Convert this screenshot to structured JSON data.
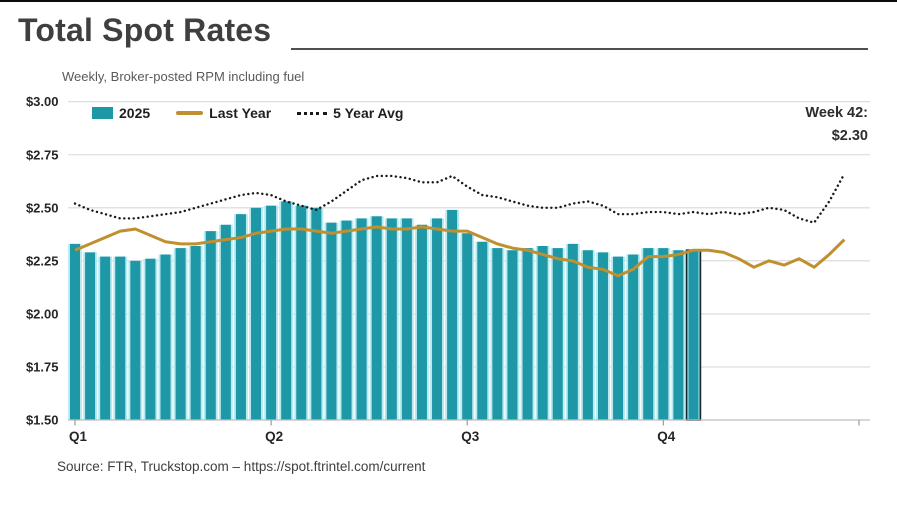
{
  "header": {
    "title": "Total Spot Rates",
    "subtitle": "Weekly, Broker-posted RPM including fuel"
  },
  "legend": {
    "items": [
      {
        "label": "2025",
        "type": "bar",
        "color": "#1E97A6"
      },
      {
        "label": "Last Year",
        "type": "line",
        "color": "#C08F2F"
      },
      {
        "label": "5 Year Avg",
        "type": "dotted",
        "color": "#1A1A1A"
      }
    ]
  },
  "annotation": {
    "line1": "Week 42:",
    "line2": "$2.30"
  },
  "source": "Source: FTR, Truckstop.com – https://spot.ftrintel.com/current",
  "colors": {
    "bar": "#1E97A6",
    "bar_light": "#B5EAF0",
    "last_year": "#C08F2F",
    "five_year_avg": "#1A1A1A",
    "highlight_outline": "#16262E",
    "grid": "#D9D9D9",
    "axis": "#BFBFBF",
    "tick": "#9A9A9A",
    "label": "#262626"
  },
  "chart_data": {
    "type": "bar",
    "title": "Total Spot Rates",
    "subtitle": "Weekly, Broker-posted RPM including fuel",
    "x_unit": "week",
    "weeks_total": 52,
    "ylim": [
      1.5,
      3.0
    ],
    "ytick_step": 0.25,
    "ytick_labels": [
      "$1.50",
      "$1.75",
      "$2.00",
      "$2.25",
      "$2.50",
      "$2.75",
      "$3.00"
    ],
    "xticks": [
      {
        "label": "Q1",
        "week": 1
      },
      {
        "label": "Q2",
        "week": 14
      },
      {
        "label": "Q3",
        "week": 27
      },
      {
        "label": "Q4",
        "week": 40
      }
    ],
    "grid": true,
    "legend_position": "top-left",
    "highlight": {
      "week": 42,
      "value": 2.3,
      "label": "Week 42: $2.30"
    },
    "series": [
      {
        "name": "2025",
        "type": "bar",
        "color": "#1E97A6",
        "start_week": 1,
        "values": [
          2.33,
          2.29,
          2.27,
          2.27,
          2.25,
          2.26,
          2.28,
          2.31,
          2.32,
          2.39,
          2.42,
          2.47,
          2.5,
          2.51,
          2.53,
          2.51,
          2.5,
          2.43,
          2.44,
          2.45,
          2.46,
          2.45,
          2.45,
          2.42,
          2.45,
          2.49,
          2.38,
          2.34,
          2.31,
          2.3,
          2.31,
          2.32,
          2.31,
          2.33,
          2.3,
          2.29,
          2.27,
          2.28,
          2.31,
          2.31,
          2.3,
          2.3
        ]
      },
      {
        "name": "Last Year",
        "type": "line",
        "color": "#C08F2F",
        "start_week": 1,
        "values": [
          2.3,
          2.33,
          2.36,
          2.39,
          2.4,
          2.37,
          2.34,
          2.33,
          2.33,
          2.34,
          2.35,
          2.36,
          2.38,
          2.39,
          2.4,
          2.4,
          2.39,
          2.38,
          2.39,
          2.4,
          2.41,
          2.4,
          2.4,
          2.41,
          2.4,
          2.39,
          2.39,
          2.36,
          2.33,
          2.31,
          2.3,
          2.28,
          2.26,
          2.25,
          2.22,
          2.21,
          2.18,
          2.21,
          2.27,
          2.27,
          2.28,
          2.3,
          2.3,
          2.29,
          2.26,
          2.22,
          2.25,
          2.23,
          2.26,
          2.22,
          2.28,
          2.35
        ]
      },
      {
        "name": "5 Year Avg",
        "type": "dotted-line",
        "color": "#1A1A1A",
        "start_week": 1,
        "values": [
          2.52,
          2.49,
          2.47,
          2.45,
          2.45,
          2.46,
          2.47,
          2.48,
          2.5,
          2.52,
          2.54,
          2.56,
          2.57,
          2.56,
          2.53,
          2.51,
          2.49,
          2.53,
          2.58,
          2.63,
          2.65,
          2.65,
          2.64,
          2.62,
          2.62,
          2.65,
          2.6,
          2.56,
          2.55,
          2.53,
          2.51,
          2.5,
          2.5,
          2.52,
          2.53,
          2.51,
          2.47,
          2.47,
          2.48,
          2.48,
          2.47,
          2.48,
          2.47,
          2.48,
          2.47,
          2.48,
          2.5,
          2.49,
          2.45,
          2.43,
          2.53,
          2.66
        ]
      }
    ]
  }
}
